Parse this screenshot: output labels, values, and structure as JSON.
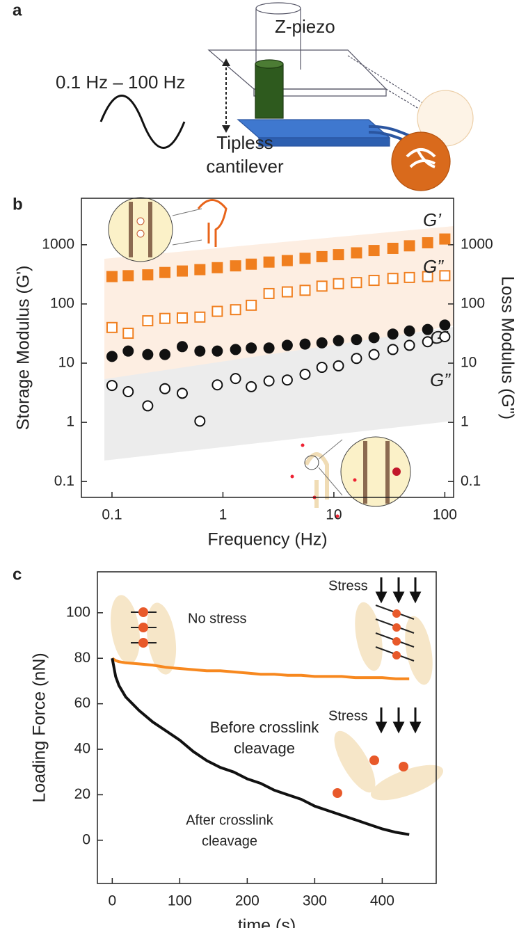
{
  "diagram": {
    "panel": "a",
    "labels": [
      "Z-piezo",
      "0.1 Hz – 100 Hz",
      "Tipless",
      "cantilever"
    ]
  },
  "chart_data": [
    {
      "type": "scatter",
      "panel": "b",
      "log_x": true,
      "log_y": true,
      "x_label": "Frequency (Hz)",
      "y_label": "Storage Modulus (G')",
      "y2_label": "Loss Modulus (G\")",
      "x": [
        0.1,
        0.14,
        0.21,
        0.3,
        0.43,
        0.62,
        0.89,
        1.3,
        1.8,
        2.6,
        3.8,
        5.5,
        7.8,
        11,
        16,
        23,
        34,
        48,
        70,
        100
      ],
      "xlim": [
        0.053,
        120
      ],
      "xticks": [
        0.1,
        1,
        10,
        100
      ],
      "ylim": [
        0.054,
        6100
      ],
      "yticks": [
        0.1,
        1,
        10,
        100,
        1000
      ],
      "y2lim": [
        0.054,
        6100
      ],
      "y2ticks": [
        0.1,
        1,
        10,
        100,
        1000
      ],
      "series": [
        {
          "name": "G’",
          "color": "#f07f1f",
          "marker": "square",
          "filled": true,
          "values": [
            290,
            300,
            310,
            340,
            360,
            380,
            410,
            440,
            470,
            510,
            540,
            590,
            630,
            680,
            730,
            800,
            870,
            960,
            1080,
            1250
          ]
        },
        {
          "name": "G”",
          "color": "#f07f1f",
          "marker": "square",
          "filled": false,
          "axis": "y2",
          "values": [
            40,
            32,
            52,
            57,
            58,
            60,
            75,
            80,
            95,
            150,
            160,
            170,
            200,
            220,
            230,
            250,
            270,
            280,
            290,
            300
          ]
        },
        {
          "name": "G’",
          "color": "#111111",
          "marker": "circle",
          "filled": true,
          "values": [
            13,
            16,
            14,
            14,
            19,
            16,
            16,
            17,
            18,
            18,
            20,
            21,
            22,
            24,
            25,
            27,
            31,
            35,
            37,
            44
          ]
        },
        {
          "name": "G”",
          "color": "#111111",
          "marker": "circle",
          "filled": false,
          "axis": "y2",
          "values": [
            4.2,
            3.3,
            1.9,
            3.7,
            3.1,
            1.05,
            4.3,
            5.5,
            4,
            5,
            5.2,
            6.5,
            8.5,
            9,
            12,
            14,
            17,
            20,
            23,
            28
          ]
        }
      ]
    },
    {
      "type": "line",
      "panel": "c",
      "x_label": "time (s)",
      "y_label": "Loading Force (nN)",
      "x": [
        0,
        5,
        10,
        20,
        40,
        60,
        80,
        100,
        120,
        140,
        160,
        180,
        200,
        220,
        240,
        260,
        280,
        300,
        320,
        340,
        360,
        380,
        400,
        420,
        440
      ],
      "xlim": [
        -22,
        480
      ],
      "xticks": [
        0,
        100,
        200,
        300,
        400
      ],
      "ylim": [
        -19,
        118
      ],
      "yticks": [
        0,
        20,
        40,
        60,
        80,
        100
      ],
      "series": [
        {
          "color": "#f7881f",
          "values": [
            80,
            79,
            78.5,
            78,
            77.5,
            77,
            76,
            75.5,
            75,
            74.5,
            74.5,
            74,
            73.5,
            73,
            73,
            72.5,
            72.5,
            72,
            72,
            72,
            71.5,
            71.5,
            71.5,
            71,
            71
          ]
        },
        {
          "color": "#111111",
          "values": [
            80,
            72,
            68,
            63,
            57,
            52,
            48,
            44,
            39,
            35,
            32,
            30,
            27,
            25,
            22,
            20,
            18,
            15,
            13,
            11,
            9,
            7,
            5,
            3.5,
            2.5
          ]
        }
      ],
      "annotations": [
        {
          "text": "No stress",
          "color": "#222222"
        },
        {
          "text": "Stress",
          "color": "#222222"
        },
        {
          "text": "Before crosslink",
          "color": "#f7881f"
        },
        {
          "text": "cleavage",
          "color": "#f7881f"
        },
        {
          "text": "Stress",
          "color": "#222222"
        },
        {
          "text": "After crosslink",
          "color": "#222222"
        },
        {
          "text": "cleavage",
          "color": "#222222"
        }
      ]
    }
  ]
}
